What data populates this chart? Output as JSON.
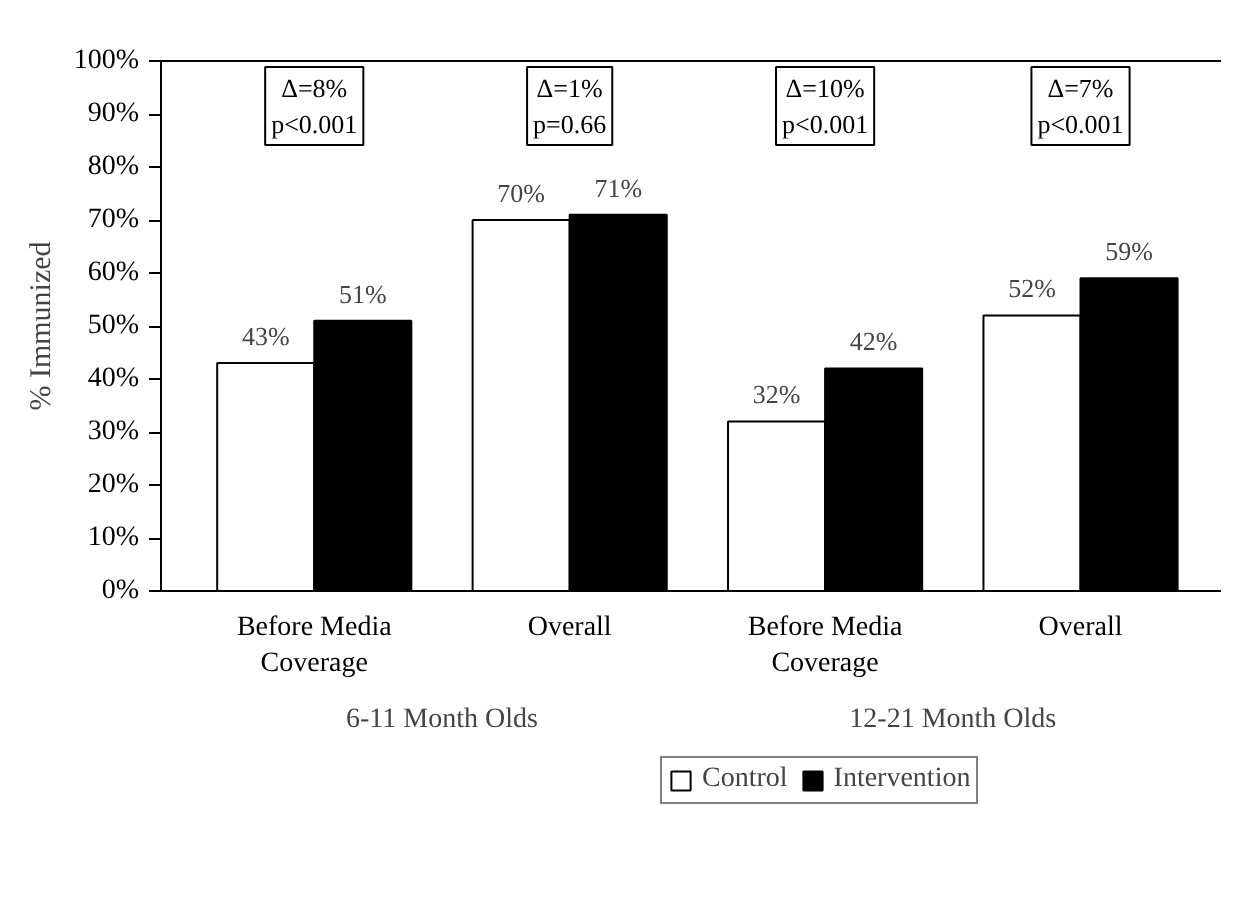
{
  "chart_data": {
    "type": "bar",
    "ylabel": "% Immunized",
    "categories": [
      "Before Media Coverage",
      "Overall",
      "Before Media Coverage",
      "Overall"
    ],
    "series": [
      {
        "name": "Control",
        "color": "#ffffff",
        "values": [
          43,
          70,
          32,
          52
        ],
        "value_labels": [
          "43%",
          "70%",
          "32%",
          "52%"
        ]
      },
      {
        "name": "Intervention",
        "color": "#000000",
        "values": [
          51,
          71,
          42,
          59
        ],
        "value_labels": [
          "51%",
          "71%",
          "42%",
          "59%"
        ]
      }
    ],
    "ylim": [
      0,
      100
    ],
    "yticks": [
      {
        "value": 0,
        "label": "0%"
      },
      {
        "value": 10,
        "label": "10%"
      },
      {
        "value": 20,
        "label": "20%"
      },
      {
        "value": 30,
        "label": "30%"
      },
      {
        "value": 40,
        "label": "40%"
      },
      {
        "value": 50,
        "label": "50%"
      },
      {
        "value": 60,
        "label": "60%"
      },
      {
        "value": 70,
        "label": "70%"
      },
      {
        "value": 80,
        "label": "80%"
      },
      {
        "value": 90,
        "label": "90%"
      },
      {
        "value": 100,
        "label": "100%"
      }
    ],
    "annotations": [
      "Δ=8%\np<0.001",
      "Δ=1%\np=0.66",
      "Δ=10%\np<0.001",
      "Δ=7%\np<0.001",
      "6-11 Month Olds",
      "12-21 Month Olds"
    ],
    "legend": "bottom",
    "grid": false
  }
}
